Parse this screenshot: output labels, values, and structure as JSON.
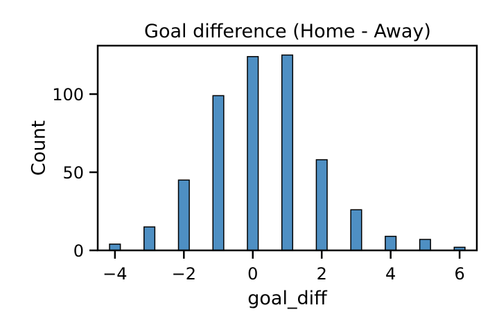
{
  "chart_data": {
    "type": "bar",
    "title": "Goal difference (Home - Away)",
    "xlabel": "goal_diff",
    "ylabel": "Count",
    "x": [
      -4,
      -3,
      -2,
      -1,
      0,
      1,
      2,
      3,
      4,
      5,
      6
    ],
    "values": [
      4,
      15,
      45,
      99,
      124,
      125,
      58,
      26,
      9,
      7,
      2
    ],
    "xlim": [
      -4.5,
      6.5
    ],
    "ylim": [
      0,
      131
    ],
    "xticks": [
      -4,
      -2,
      0,
      2,
      4,
      6
    ],
    "xtick_labels": [
      "−4",
      "−2",
      "0",
      "2",
      "4",
      "6"
    ],
    "yticks": [
      0,
      50,
      100
    ],
    "ytick_labels": [
      "0",
      "50",
      "100"
    ],
    "bar_color": "#4e8fc3",
    "grid": false
  }
}
